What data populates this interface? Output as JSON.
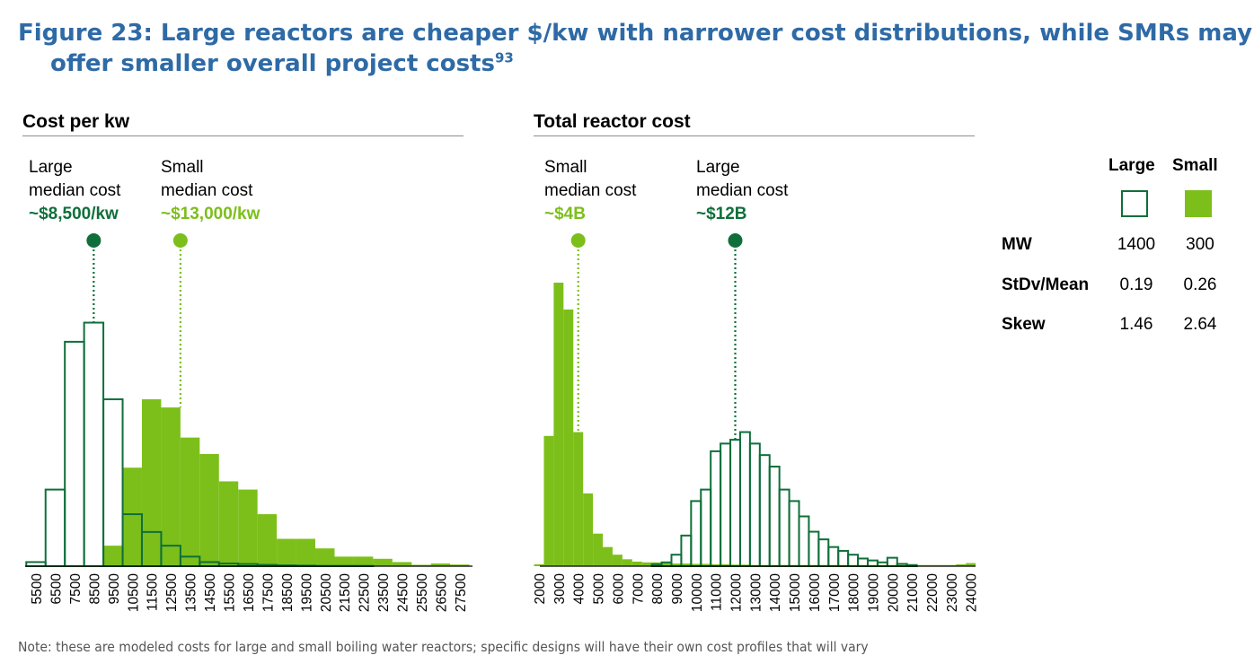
{
  "title_main": "Figure 23: Large reactors are cheaper $/kw with narrower cost distributions, while SMRs may offer smaller overall project costs",
  "title_sup": "93",
  "footnote": "Note: these are modeled costs for large and small boiling water reactors; specific designs will have their own cost profiles that will vary",
  "colors": {
    "large": "#0f6f3a",
    "small": "#7cbf1a"
  },
  "legend": {
    "headers": [
      "Large",
      "Small"
    ],
    "rows": [
      {
        "label": "MW",
        "large": "1400",
        "small": "300"
      },
      {
        "label": "StDv/Mean",
        "large": "0.19",
        "small": "0.26"
      },
      {
        "label": "Skew",
        "large": "1.46",
        "small": "2.64"
      }
    ]
  },
  "chart_data": [
    {
      "type": "bar",
      "title": "Cost per kw",
      "bin_width": 1000,
      "tick_labels": [
        "5500",
        "6500",
        "7500",
        "8500",
        "9500",
        "10500",
        "11500",
        "12500",
        "13500",
        "14500",
        "15500",
        "16500",
        "17500",
        "18500",
        "19500",
        "20500",
        "21500",
        "22500",
        "23500",
        "24500",
        "25500",
        "26500",
        "27500"
      ],
      "annotations": [
        {
          "series": "Large",
          "line1": "Large",
          "line2": "median cost",
          "value": "~$8,500/kw",
          "median": 8500
        },
        {
          "series": "Small",
          "line1": "Small",
          "line2": "median cost",
          "value": "~$13,000/kw",
          "median": 13000
        }
      ],
      "series": [
        {
          "name": "Large",
          "style": "outline",
          "x": [
            5500,
            6500,
            7500,
            8500,
            9500,
            10500,
            11500,
            12500,
            13500,
            14500,
            15500,
            16500,
            17500,
            18500,
            19500,
            20500,
            21500,
            22500,
            23500,
            24500,
            25500,
            26500,
            27500
          ],
          "values": [
            1.5,
            28,
            82,
            89,
            61,
            19,
            12.5,
            7.5,
            3.5,
            1.5,
            1,
            0.8,
            0.5,
            0.3,
            0.2,
            0.1,
            0.1,
            0.1,
            0,
            0,
            0,
            0,
            0
          ]
        },
        {
          "name": "Small",
          "style": "filled",
          "x": [
            5500,
            6500,
            7500,
            8500,
            9500,
            10500,
            11500,
            12500,
            13500,
            14500,
            15500,
            16500,
            17500,
            18500,
            19500,
            20500,
            21500,
            22500,
            23500,
            24500,
            25500,
            26500,
            27500
          ],
          "values": [
            0,
            0,
            0,
            0,
            7.5,
            36,
            61,
            58,
            47,
            41,
            31,
            28,
            19,
            10,
            10,
            6.5,
            3.5,
            3.5,
            2.7,
            1.5,
            0.5,
            1,
            0.6
          ]
        }
      ]
    },
    {
      "type": "bar",
      "title": "Total reactor cost",
      "bin_width": 500,
      "tick_labels": [
        "2000",
        "3000",
        "4000",
        "5000",
        "6000",
        "7000",
        "8000",
        "9000",
        "10000",
        "11000",
        "12000",
        "13000",
        "14000",
        "15000",
        "16000",
        "17000",
        "18000",
        "19000",
        "20000",
        "21000",
        "22000",
        "23000",
        "24000"
      ],
      "annotations": [
        {
          "series": "Small",
          "line1": "Small",
          "line2": "median cost",
          "value": "~$4B",
          "median": 4000
        },
        {
          "series": "Large",
          "line1": "Large",
          "line2": "median cost",
          "value": "~$12B",
          "median": 12000
        }
      ],
      "series": [
        {
          "name": "Large",
          "style": "outline",
          "x": [
            8000,
            8500,
            9000,
            9500,
            10000,
            10500,
            11000,
            11500,
            12000,
            12500,
            13000,
            13500,
            14000,
            14500,
            15000,
            15500,
            16000,
            16500,
            17000,
            17500,
            18000,
            18500,
            19000,
            19500,
            20000,
            20500,
            21000
          ],
          "values": [
            0.5,
            1,
            3,
            8,
            17,
            20,
            30,
            32,
            33,
            35,
            32,
            29,
            26,
            20,
            17,
            13,
            9,
            7,
            5,
            4,
            3,
            2,
            1.5,
            1,
            2.2,
            0.6,
            0.3
          ]
        },
        {
          "name": "Small",
          "style": "filled",
          "x": [
            2000,
            2500,
            3000,
            3500,
            4000,
            4500,
            5000,
            5500,
            6000,
            6500,
            7000,
            7500,
            8000,
            8500,
            9000,
            9500,
            10000,
            10500,
            11000,
            11500,
            12000,
            12500,
            13000,
            13500,
            14000,
            14500,
            15000,
            15500,
            16000,
            16500,
            17000,
            17500,
            18000,
            18500,
            19000,
            19500,
            20000,
            20500,
            21000,
            21500,
            22000,
            22500,
            23000,
            23500,
            24000
          ],
          "values": [
            0.5,
            34,
            74,
            67,
            35,
            19,
            8.5,
            5,
            3,
            1.8,
            1.2,
            1,
            1,
            0.8,
            0.7,
            0.7,
            0.6,
            0.6,
            0.5,
            0.5,
            0.4,
            0.4,
            0.3,
            0.3,
            0.3,
            0.3,
            0.3,
            0.3,
            0.3,
            0.3,
            0.3,
            0.3,
            0.3,
            0.3,
            0.3,
            0.3,
            0.3,
            0.3,
            0.3,
            0.3,
            0.3,
            0.3,
            0.3,
            0.5,
            0.8
          ]
        }
      ]
    }
  ]
}
